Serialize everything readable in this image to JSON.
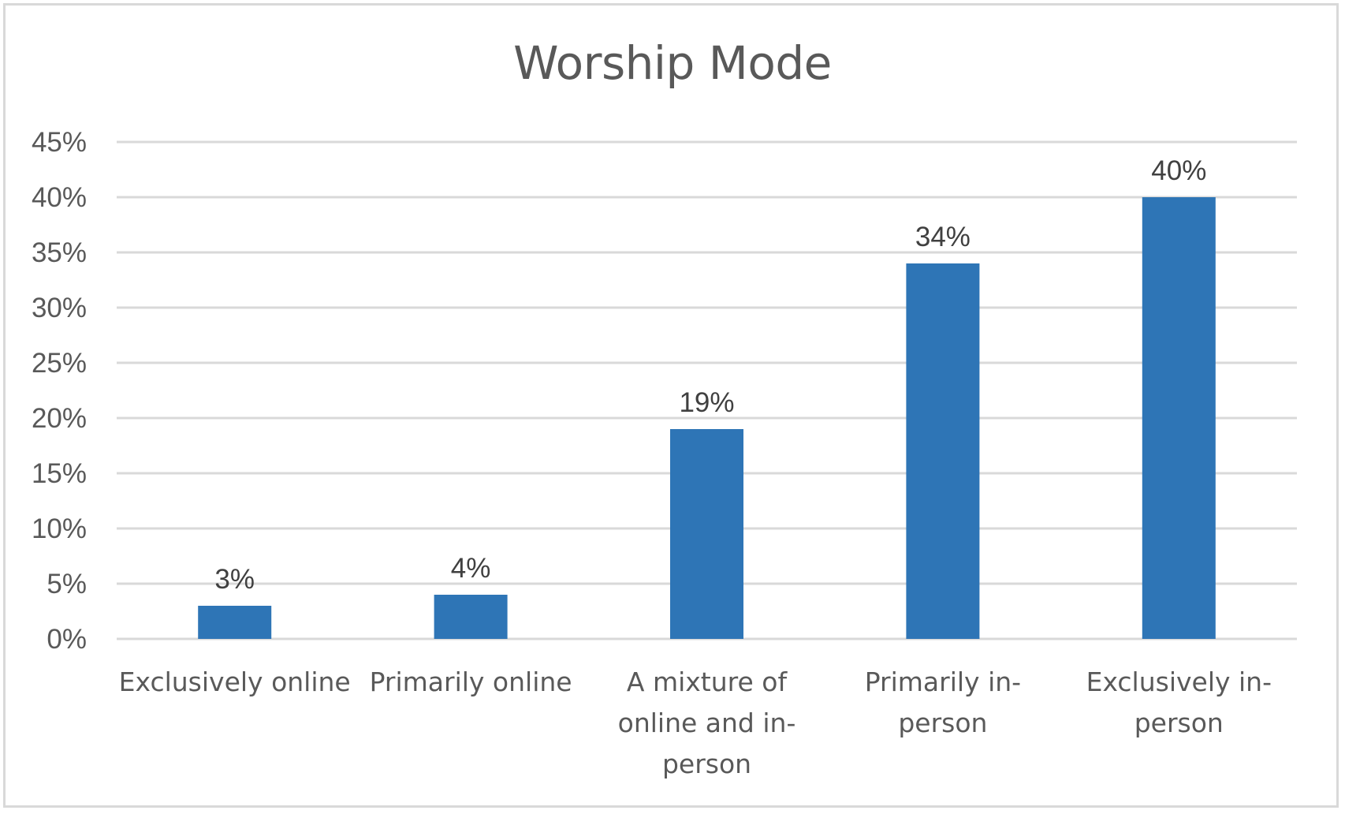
{
  "chart_data": {
    "type": "bar",
    "title": "Worship Mode",
    "xlabel": "",
    "ylabel": "",
    "categories": [
      "Exclusively online",
      "Primarily online",
      "A mixture of online and in-person",
      "Primarily in-person",
      "Exclusively in-person"
    ],
    "category_lines": [
      [
        "Exclusively online"
      ],
      [
        "Primarily online"
      ],
      [
        "A mixture of",
        "online and in-",
        "person"
      ],
      [
        "Primarily in-",
        "person"
      ],
      [
        "Exclusively in-",
        "person"
      ]
    ],
    "values": [
      3,
      4,
      19,
      34,
      40
    ],
    "data_labels": [
      "3%",
      "4%",
      "19%",
      "34%",
      "40%"
    ],
    "ylim": [
      0,
      45
    ],
    "yticks": [
      0,
      5,
      10,
      15,
      20,
      25,
      30,
      35,
      40,
      45
    ],
    "ytick_labels": [
      "0%",
      "5%",
      "10%",
      "15%",
      "20%",
      "25%",
      "30%",
      "35%",
      "40%",
      "45%"
    ],
    "grid": true,
    "legend": "none",
    "colors": {
      "bar": "#2e75b6",
      "grid": "#d9d9d9",
      "text": "#595959"
    }
  }
}
